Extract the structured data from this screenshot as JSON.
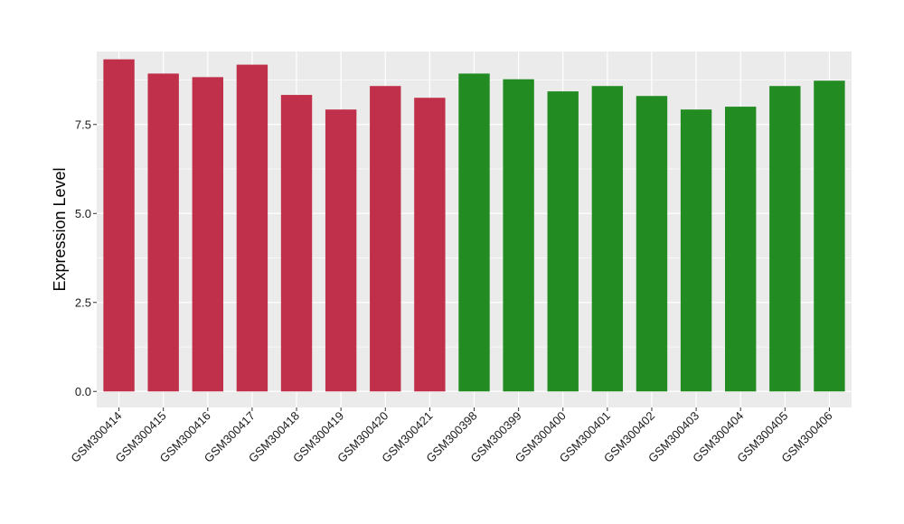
{
  "chart_data": {
    "type": "bar",
    "title": "",
    "xlabel": "",
    "ylabel": "Expression Level",
    "ylim": [
      -0.45,
      9.55
    ],
    "yticks": [
      0.0,
      2.5,
      5.0,
      7.5
    ],
    "ytick_labels": [
      "0.0",
      "2.5",
      "5.0",
      "7.5"
    ],
    "grid": true,
    "legend": "none",
    "categories": [
      "GSM300414",
      "GSM300415",
      "GSM300416",
      "GSM300417",
      "GSM300418",
      "GSM300419",
      "GSM300420",
      "GSM300421",
      "GSM300398",
      "GSM300399",
      "GSM300400",
      "GSM300401",
      "GSM300402",
      "GSM300403",
      "GSM300404",
      "GSM300405",
      "GSM300406"
    ],
    "values": [
      9.33,
      8.93,
      8.83,
      9.18,
      8.33,
      7.92,
      8.58,
      8.25,
      8.93,
      8.77,
      8.43,
      8.58,
      8.3,
      7.92,
      8.0,
      8.58,
      8.73
    ],
    "bar_colors": [
      "#c0304a",
      "#c0304a",
      "#c0304a",
      "#c0304a",
      "#c0304a",
      "#c0304a",
      "#c0304a",
      "#c0304a",
      "#228b22",
      "#228b22",
      "#228b22",
      "#228b22",
      "#228b22",
      "#228b22",
      "#228b22",
      "#228b22",
      "#228b22"
    ],
    "panel_background": "#ebebeb",
    "grid_color": "#ffffff"
  }
}
